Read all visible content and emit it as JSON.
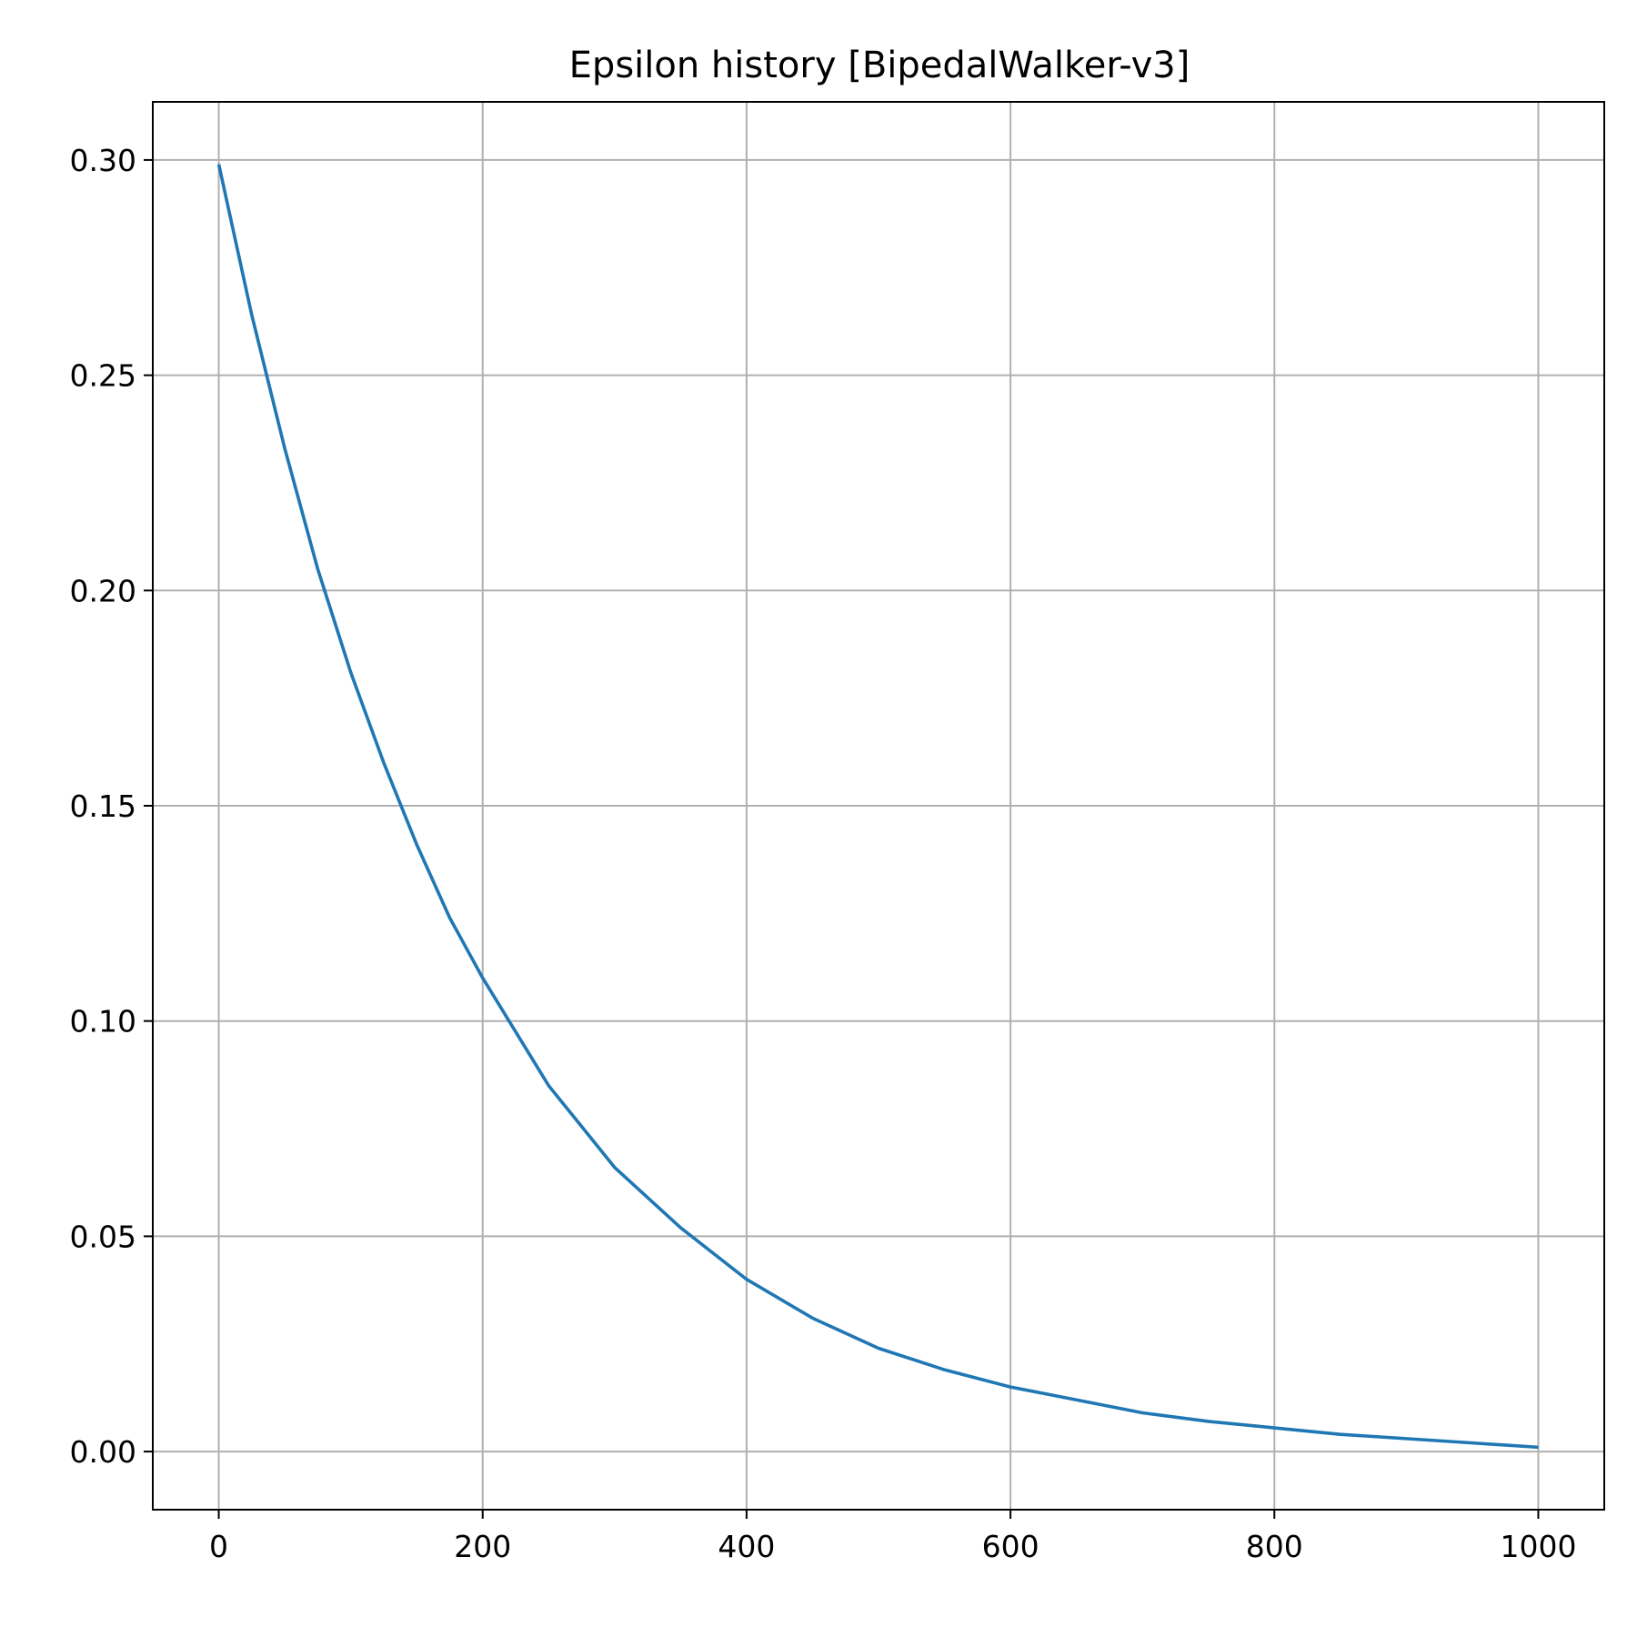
{
  "chart_data": {
    "type": "line",
    "title": "Epsilon history [BipedalWalker-v3]",
    "xlabel": "",
    "ylabel": "",
    "xlim": [
      -50,
      1050
    ],
    "ylim": [
      -0.0135,
      0.3135
    ],
    "x_ticks": [
      0,
      200,
      400,
      600,
      800,
      1000
    ],
    "x_tick_labels": [
      "0",
      "200",
      "400",
      "600",
      "800",
      "1000"
    ],
    "y_ticks": [
      0.0,
      0.05,
      0.1,
      0.15,
      0.2,
      0.25,
      0.3
    ],
    "y_tick_labels": [
      "0.00",
      "0.05",
      "0.10",
      "0.15",
      "0.20",
      "0.25",
      "0.30"
    ],
    "grid": true,
    "series": [
      {
        "color": "#1f77b4",
        "x": [
          0,
          25,
          50,
          75,
          100,
          125,
          150,
          175,
          200,
          250,
          300,
          350,
          400,
          450,
          500,
          550,
          600,
          650,
          700,
          750,
          800,
          850,
          900,
          950,
          1000
        ],
        "y": [
          0.299,
          0.264,
          0.233,
          0.205,
          0.181,
          0.16,
          0.141,
          0.124,
          0.11,
          0.085,
          0.066,
          0.052,
          0.04,
          0.031,
          0.024,
          0.019,
          0.015,
          0.012,
          0.009,
          0.007,
          0.0055,
          0.004,
          0.003,
          0.002,
          0.001
        ]
      }
    ]
  }
}
